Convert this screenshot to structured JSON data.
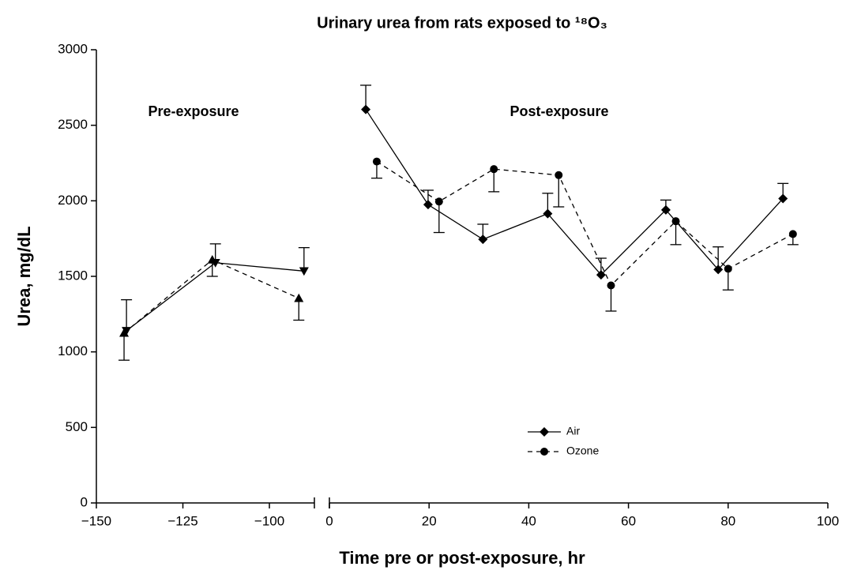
{
  "chart_data": {
    "type": "line",
    "title": "Urinary urea from rats exposed to ¹⁸O₃",
    "x_label": "Time pre or post-exposure, hr",
    "y_label": "Urea, mg/dL",
    "ylim": [
      0,
      3000
    ],
    "yticks": [
      0,
      500,
      1000,
      1500,
      2000,
      2500,
      3000
    ],
    "x_panels": [
      {
        "xlim": [
          -150,
          -87
        ],
        "xticks": [
          {
            "value": -150,
            "label": "−150"
          },
          {
            "value": -125,
            "label": "−125"
          },
          {
            "value": -100,
            "label": "−100"
          }
        ],
        "label": "Pre-exposure"
      },
      {
        "xlim": [
          0,
          100
        ],
        "xticks": [
          0,
          20,
          40,
          60,
          80,
          100
        ],
        "label": "Post-exposure"
      }
    ],
    "series": [
      {
        "name": "Air",
        "color": "#000000",
        "dashed": false,
        "error_direction": "up",
        "segments": [
          {
            "panel": 0,
            "marker": "triangle-down",
            "x": [
              -141.3,
              -115.6,
              -90
            ],
            "values": [
              1140,
              1590,
              1535
            ],
            "errors": [
              205,
              125,
              155
            ]
          },
          {
            "panel": 1,
            "marker": "diamond",
            "x": [
              7.3,
              19.8,
              30.8,
              43.8,
              54.5,
              67.5,
              78,
              91
            ],
            "values": [
              2605,
              1975,
              1745,
              1915,
              1510,
              1940,
              1545,
              2015
            ],
            "errors": [
              160,
              95,
              100,
              135,
              110,
              65,
              150,
              100
            ]
          }
        ]
      },
      {
        "name": "Ozone",
        "color": "#000000",
        "dashed": true,
        "error_direction": "down",
        "segments": [
          {
            "panel": 0,
            "marker": "triangle-up",
            "x": [
              -142,
              -116.5,
              -91.5
            ],
            "values": [
              1125,
              1610,
              1355
            ],
            "errors": [
              180,
              110,
              145
            ]
          },
          {
            "panel": 1,
            "marker": "circle",
            "x": [
              9.5,
              22,
              33,
              46,
              56.5,
              69.5,
              80,
              93
            ],
            "values": [
              2260,
              1995,
              2210,
              2170,
              1440,
              1865,
              1550,
              1780
            ],
            "errors": [
              110,
              205,
              150,
              210,
              170,
              155,
              140,
              70
            ]
          }
        ]
      }
    ],
    "legend_marker": [
      "diamond",
      "circle"
    ]
  }
}
